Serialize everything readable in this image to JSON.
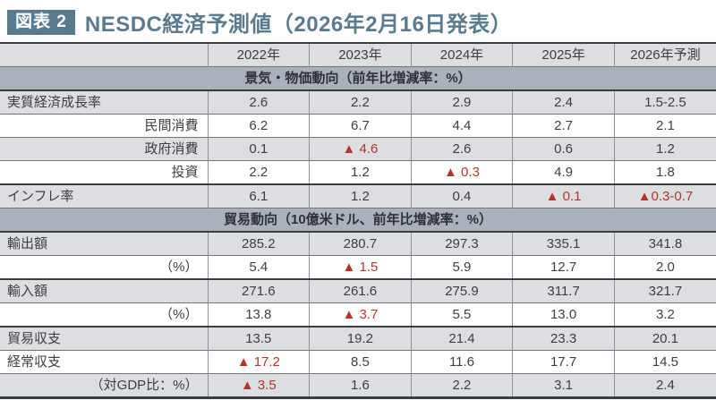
{
  "title": {
    "badge": "図表 2",
    "text": "NESDC経済予測値（2026年2月16日発表）"
  },
  "colors": {
    "accent": "#587b90",
    "red": "#b13629",
    "row_shade": "#dcdee2",
    "section_bg": "#abb1bb"
  },
  "table": {
    "columns": [
      "",
      "2022年",
      "2023年",
      "2024年",
      "2025年",
      "2026年予測"
    ],
    "sections": [
      {
        "header": "景気・物価動向（前年比増減率：%）",
        "rows": [
          {
            "label": "実質経済成長率",
            "align": "left",
            "shaded": true,
            "thick_top": false,
            "values": [
              {
                "t": "2.6"
              },
              {
                "t": "2.2"
              },
              {
                "t": "2.9"
              },
              {
                "t": "2.4"
              },
              {
                "t": "1.5-2.5"
              }
            ]
          },
          {
            "label": "民間消費",
            "align": "right",
            "shaded": false,
            "thick_top": false,
            "values": [
              {
                "t": "6.2"
              },
              {
                "t": "6.7"
              },
              {
                "t": "4.4"
              },
              {
                "t": "2.7"
              },
              {
                "t": "2.1"
              }
            ]
          },
          {
            "label": "政府消費",
            "align": "right",
            "shaded": true,
            "thick_top": false,
            "values": [
              {
                "t": "0.1"
              },
              {
                "t": "▲ 4.6",
                "red": true
              },
              {
                "t": "2.6"
              },
              {
                "t": "0.6"
              },
              {
                "t": "1.2"
              }
            ]
          },
          {
            "label": "投資",
            "align": "right",
            "shaded": false,
            "thick_top": false,
            "values": [
              {
                "t": "2.2"
              },
              {
                "t": "1.2"
              },
              {
                "t": "▲ 0.3",
                "red": true
              },
              {
                "t": "4.9"
              },
              {
                "t": "1.8"
              }
            ]
          },
          {
            "label": "インフレ率",
            "align": "left",
            "shaded": true,
            "thick_top": true,
            "values": [
              {
                "t": "6.1"
              },
              {
                "t": "1.2"
              },
              {
                "t": "0.4"
              },
              {
                "t": "▲ 0.1",
                "red": true
              },
              {
                "t": "▲0.3-0.7",
                "red": true
              }
            ]
          }
        ]
      },
      {
        "header": "貿易動向（10億米ドル、前年比増減率：%）",
        "rows": [
          {
            "label": "輸出額",
            "align": "left",
            "shaded": true,
            "thick_top": false,
            "values": [
              {
                "t": "285.2"
              },
              {
                "t": "280.7"
              },
              {
                "t": "297.3"
              },
              {
                "t": "335.1"
              },
              {
                "t": "341.8"
              }
            ]
          },
          {
            "label": "（%）",
            "align": "right",
            "shaded": false,
            "thick_top": false,
            "values": [
              {
                "t": "5.4"
              },
              {
                "t": "▲ 1.5",
                "red": true
              },
              {
                "t": "5.9"
              },
              {
                "t": "12.7"
              },
              {
                "t": "2.0"
              }
            ]
          },
          {
            "label": "輸入額",
            "align": "left",
            "shaded": true,
            "thick_top": true,
            "values": [
              {
                "t": "271.6"
              },
              {
                "t": "261.6"
              },
              {
                "t": "275.9"
              },
              {
                "t": "311.7"
              },
              {
                "t": "321.7"
              }
            ]
          },
          {
            "label": "（%）",
            "align": "right",
            "shaded": false,
            "thick_top": false,
            "values": [
              {
                "t": "13.8"
              },
              {
                "t": "▲ 3.7",
                "red": true
              },
              {
                "t": "5.5"
              },
              {
                "t": "13.0"
              },
              {
                "t": "3.2"
              }
            ]
          },
          {
            "label": "貿易収支",
            "align": "left",
            "shaded": true,
            "thick_top": true,
            "values": [
              {
                "t": "13.5"
              },
              {
                "t": "19.2"
              },
              {
                "t": "21.4"
              },
              {
                "t": "23.3"
              },
              {
                "t": "20.1"
              }
            ]
          },
          {
            "label": "経常収支",
            "align": "left",
            "shaded": false,
            "thick_top": false,
            "values": [
              {
                "t": "▲ 17.2",
                "red": true
              },
              {
                "t": "8.5"
              },
              {
                "t": "11.6"
              },
              {
                "t": "17.7"
              },
              {
                "t": "14.5"
              }
            ]
          },
          {
            "label": "（対GDP比：%）",
            "align": "right",
            "shaded": true,
            "thick_top": false,
            "values": [
              {
                "t": "▲ 3.5",
                "red": true
              },
              {
                "t": "1.6"
              },
              {
                "t": "2.2"
              },
              {
                "t": "3.1"
              },
              {
                "t": "2.4"
              }
            ]
          }
        ]
      }
    ]
  }
}
